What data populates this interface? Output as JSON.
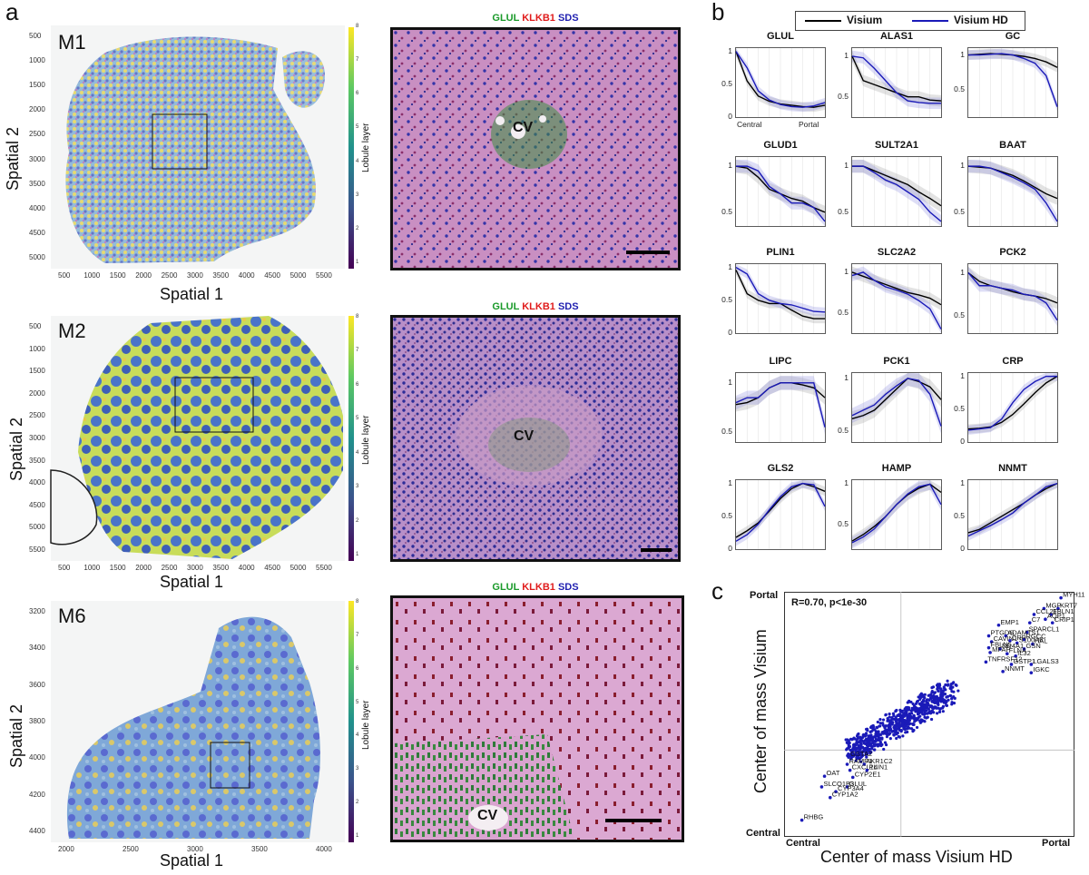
{
  "panel_labels": {
    "a": "a",
    "b": "b",
    "c": "c"
  },
  "colorbar_label": "Lobule layer",
  "colorbar_ticks": [
    "8",
    "7",
    "6",
    "5",
    "4",
    "3",
    "2",
    "1"
  ],
  "axis_titles": {
    "spatial1": "Spatial 1",
    "spatial2": "Spatial 2"
  },
  "maps": [
    {
      "label": "M1",
      "yticks": [
        "500",
        "1000",
        "1500",
        "2000",
        "2500",
        "3000",
        "3500",
        "4000",
        "4500",
        "5000"
      ],
      "xticks": [
        "500",
        "1000",
        "1500",
        "2000",
        "2500",
        "3000",
        "3500",
        "4000",
        "4500",
        "5000",
        "5500"
      ]
    },
    {
      "label": "M2",
      "yticks": [
        "500",
        "1000",
        "1500",
        "2000",
        "2500",
        "3000",
        "3500",
        "4000",
        "4500",
        "5000",
        "5500"
      ],
      "xticks": [
        "500",
        "1000",
        "1500",
        "2000",
        "2500",
        "3000",
        "3500",
        "4000",
        "4500",
        "5000",
        "5500"
      ]
    },
    {
      "label": "M6",
      "yticks": [
        "3200",
        "3400",
        "3600",
        "3800",
        "4000",
        "4200",
        "4400"
      ],
      "xticks": [
        "2000",
        "2500",
        "3000",
        "3500",
        "4000"
      ]
    }
  ],
  "he_legend": {
    "glul": "GLUL",
    "klkb1": "KLKB1",
    "sds": "SDS"
  },
  "he_colors": {
    "glul": "#1a9a2a",
    "klkb1": "#e01b1b",
    "sds": "#1f1fb0"
  },
  "cv_label": "CV",
  "legend": {
    "visium": "Visium",
    "visium_hd": "Visium HD"
  },
  "line_colors": {
    "visium": "#000000",
    "visium_hd": "#1a1ab8"
  },
  "x_end_labels": {
    "central": "Central",
    "portal": "Portal"
  },
  "genes": [
    {
      "name": "GLUL",
      "yticks": [
        "1",
        "0.5",
        "0"
      ],
      "ylim": [
        0,
        1.05
      ],
      "visium": [
        1.0,
        0.55,
        0.32,
        0.24,
        0.2,
        0.18,
        0.16,
        0.15,
        0.18
      ],
      "visium_hd": [
        1.0,
        0.75,
        0.4,
        0.26,
        0.19,
        0.16,
        0.15,
        0.17,
        0.22
      ]
    },
    {
      "name": "ALAS1",
      "yticks": [
        "1",
        "0.5"
      ],
      "ylim": [
        0.25,
        1.1
      ],
      "visium": [
        1.0,
        0.7,
        0.65,
        0.6,
        0.55,
        0.5,
        0.5,
        0.46,
        0.45
      ],
      "visium_hd": [
        1.0,
        0.98,
        0.85,
        0.7,
        0.55,
        0.45,
        0.43,
        0.42,
        0.42
      ]
    },
    {
      "name": "GC",
      "yticks": [
        "1",
        "0.5"
      ],
      "ylim": [
        0.1,
        1.1
      ],
      "visium": [
        1.0,
        1.01,
        1.02,
        1.01,
        1.0,
        0.98,
        0.95,
        0.9,
        0.82
      ],
      "visium_hd": [
        1.0,
        1.0,
        1.01,
        1.02,
        1.0,
        0.95,
        0.88,
        0.7,
        0.25
      ]
    },
    {
      "name": "GLUD1",
      "yticks": [
        "1",
        "0.5"
      ],
      "ylim": [
        0.35,
        1.1
      ],
      "visium": [
        1.0,
        0.98,
        0.88,
        0.75,
        0.7,
        0.65,
        0.62,
        0.55,
        0.5
      ],
      "visium_hd": [
        1.0,
        1.0,
        0.95,
        0.78,
        0.7,
        0.6,
        0.6,
        0.55,
        0.4
      ]
    },
    {
      "name": "SULT2A1",
      "yticks": [
        "1",
        "0.5"
      ],
      "ylim": [
        0.35,
        1.1
      ],
      "visium": [
        1.0,
        1.0,
        0.95,
        0.9,
        0.85,
        0.8,
        0.72,
        0.65,
        0.57
      ],
      "visium_hd": [
        1.0,
        1.0,
        0.93,
        0.85,
        0.8,
        0.72,
        0.64,
        0.5,
        0.4
      ]
    },
    {
      "name": "BAAT",
      "yticks": [
        "1",
        "0.5"
      ],
      "ylim": [
        0.35,
        1.1
      ],
      "visium": [
        1.0,
        0.99,
        0.98,
        0.94,
        0.9,
        0.84,
        0.77,
        0.7,
        0.65
      ],
      "visium_hd": [
        1.0,
        1.0,
        0.98,
        0.93,
        0.88,
        0.82,
        0.75,
        0.6,
        0.4
      ]
    },
    {
      "name": "PLIN1",
      "yticks": [
        "1",
        "0.5",
        "0"
      ],
      "ylim": [
        0,
        1.05
      ],
      "visium": [
        0.96,
        0.6,
        0.5,
        0.45,
        0.45,
        0.35,
        0.26,
        0.22,
        0.22
      ],
      "visium_hd": [
        1.0,
        0.9,
        0.6,
        0.5,
        0.45,
        0.43,
        0.38,
        0.33,
        0.32
      ]
    },
    {
      "name": "SLC2A2",
      "yticks": [
        "1",
        "0.5"
      ],
      "ylim": [
        0.25,
        1.1
      ],
      "visium": [
        1.0,
        0.95,
        0.9,
        0.85,
        0.8,
        0.75,
        0.72,
        0.68,
        0.6
      ],
      "visium_hd": [
        0.96,
        1.0,
        0.9,
        0.82,
        0.78,
        0.73,
        0.65,
        0.55,
        0.3
      ]
    },
    {
      "name": "PCK2",
      "yticks": [
        "1",
        "0.5"
      ],
      "ylim": [
        0.3,
        1.1
      ],
      "visium": [
        1.0,
        0.9,
        0.85,
        0.82,
        0.78,
        0.75,
        0.73,
        0.7,
        0.65
      ],
      "visium_hd": [
        1.0,
        0.85,
        0.85,
        0.82,
        0.8,
        0.75,
        0.73,
        0.65,
        0.45
      ]
    },
    {
      "name": "LIPC",
      "yticks": [
        "1",
        "0.5"
      ],
      "ylim": [
        0.4,
        1.1
      ],
      "visium": [
        0.78,
        0.8,
        0.85,
        0.95,
        1.0,
        1.0,
        0.98,
        0.95,
        0.85
      ],
      "visium_hd": [
        0.8,
        0.85,
        0.85,
        0.95,
        1.0,
        1.0,
        1.0,
        1.0,
        0.55
      ]
    },
    {
      "name": "PCK1",
      "yticks": [
        "1",
        "0.5"
      ],
      "ylim": [
        0.4,
        1.05
      ],
      "visium": [
        0.62,
        0.65,
        0.7,
        0.8,
        0.9,
        1.0,
        0.97,
        0.92,
        0.8
      ],
      "visium_hd": [
        0.65,
        0.7,
        0.75,
        0.85,
        0.93,
        1.0,
        0.98,
        0.85,
        0.55
      ]
    },
    {
      "name": "CRP",
      "yticks": [
        "1",
        "0.5",
        "0"
      ],
      "ylim": [
        0,
        1.05
      ],
      "visium": [
        0.2,
        0.21,
        0.23,
        0.3,
        0.42,
        0.58,
        0.75,
        0.9,
        1.0
      ],
      "visium_hd": [
        0.18,
        0.2,
        0.22,
        0.35,
        0.6,
        0.8,
        0.92,
        1.0,
        1.0
      ]
    },
    {
      "name": "GLS2",
      "yticks": [
        "1",
        "0.5",
        "0"
      ],
      "ylim": [
        0,
        1.05
      ],
      "visium": [
        0.18,
        0.28,
        0.4,
        0.58,
        0.77,
        0.92,
        1.0,
        0.95,
        0.88
      ],
      "visium_hd": [
        0.12,
        0.22,
        0.38,
        0.6,
        0.8,
        0.95,
        1.0,
        0.98,
        0.65
      ]
    },
    {
      "name": "HAMP",
      "yticks": [
        "1",
        "0.5"
      ],
      "ylim": [
        0.2,
        1.05
      ],
      "visium": [
        0.3,
        0.38,
        0.48,
        0.6,
        0.75,
        0.87,
        0.95,
        1.0,
        0.9
      ],
      "visium_hd": [
        0.28,
        0.35,
        0.45,
        0.6,
        0.75,
        0.88,
        0.97,
        1.0,
        0.75
      ]
    },
    {
      "name": "NNMT",
      "yticks": [
        "1",
        "0.5",
        "0"
      ],
      "ylim": [
        0,
        1.05
      ],
      "visium": [
        0.25,
        0.3,
        0.4,
        0.5,
        0.6,
        0.7,
        0.82,
        0.92,
        1.0
      ],
      "visium_hd": [
        0.2,
        0.28,
        0.36,
        0.45,
        0.55,
        0.7,
        0.82,
        0.95,
        1.0
      ]
    }
  ],
  "chart_data": {
    "type": "scatter",
    "title": "R=0.70, p<1e-30",
    "xlabel": "Center of mass Visium HD",
    "ylabel": "Center of mass Visium",
    "xlim": [
      0,
      1
    ],
    "ylim": [
      0,
      1
    ],
    "x_tick_labels": [
      "Central",
      "Portal"
    ],
    "y_tick_labels": [
      "Central",
      "Portal"
    ],
    "point_color": "#1a1ab8",
    "labeled_points": [
      {
        "label": "MYH11",
        "x": 0.965,
        "y": 0.99
      },
      {
        "label": "KRT7",
        "x": 0.955,
        "y": 0.945
      },
      {
        "label": "MGP",
        "x": 0.905,
        "y": 0.945
      },
      {
        "label": "FBLN1",
        "x": 0.93,
        "y": 0.92
      },
      {
        "label": "CCL21",
        "x": 0.87,
        "y": 0.92
      },
      {
        "label": "AQP1",
        "x": 0.91,
        "y": 0.9
      },
      {
        "label": "CRIP1",
        "x": 0.935,
        "y": 0.885
      },
      {
        "label": "C7",
        "x": 0.855,
        "y": 0.885
      },
      {
        "label": "EMP1",
        "x": 0.745,
        "y": 0.875
      },
      {
        "label": "SPARCL1",
        "x": 0.845,
        "y": 0.845
      },
      {
        "label": "PTGDS",
        "x": 0.71,
        "y": 0.83
      },
      {
        "label": "ADAMTS1",
        "x": 0.77,
        "y": 0.83
      },
      {
        "label": "RGCC",
        "x": 0.835,
        "y": 0.815
      },
      {
        "label": "CAVIN1",
        "x": 0.72,
        "y": 0.805
      },
      {
        "label": "CRP",
        "x": 0.785,
        "y": 0.81
      },
      {
        "label": "S100A6",
        "x": 0.81,
        "y": 0.8
      },
      {
        "label": "HAL",
        "x": 0.865,
        "y": 0.795
      },
      {
        "label": "FBLN5",
        "x": 0.71,
        "y": 0.78
      },
      {
        "label": "NR4A1",
        "x": 0.75,
        "y": 0.775
      },
      {
        "label": "GSN",
        "x": 0.835,
        "y": 0.775
      },
      {
        "label": "MFAP",
        "x": 0.715,
        "y": 0.76
      },
      {
        "label": "FLNA",
        "x": 0.775,
        "y": 0.755
      },
      {
        "label": "IL32",
        "x": 0.805,
        "y": 0.745
      },
      {
        "label": "TNFRSF12",
        "x": 0.7,
        "y": 0.72
      },
      {
        "label": "GSTP1",
        "x": 0.79,
        "y": 0.71
      },
      {
        "label": "LGALS3",
        "x": 0.86,
        "y": 0.71
      },
      {
        "label": "NNMT",
        "x": 0.76,
        "y": 0.68
      },
      {
        "label": "IGKC",
        "x": 0.86,
        "y": 0.675
      },
      {
        "label": "GSTA2",
        "x": 0.215,
        "y": 0.32
      },
      {
        "label": "RAMP1",
        "x": 0.21,
        "y": 0.29
      },
      {
        "label": "AKR1C2",
        "x": 0.27,
        "y": 0.29
      },
      {
        "label": "CXCL14",
        "x": 0.22,
        "y": 0.265
      },
      {
        "label": "PLIN1",
        "x": 0.28,
        "y": 0.265
      },
      {
        "label": "OAT",
        "x": 0.13,
        "y": 0.24
      },
      {
        "label": "CYP2E1",
        "x": 0.23,
        "y": 0.235
      },
      {
        "label": "SLCO1B3",
        "x": 0.12,
        "y": 0.195
      },
      {
        "label": "GLUL",
        "x": 0.21,
        "y": 0.195
      },
      {
        "label": "CYP3A4",
        "x": 0.17,
        "y": 0.175
      },
      {
        "label": "CYP1A2",
        "x": 0.15,
        "y": 0.15
      },
      {
        "label": "RHBG",
        "x": 0.05,
        "y": 0.055
      }
    ]
  }
}
